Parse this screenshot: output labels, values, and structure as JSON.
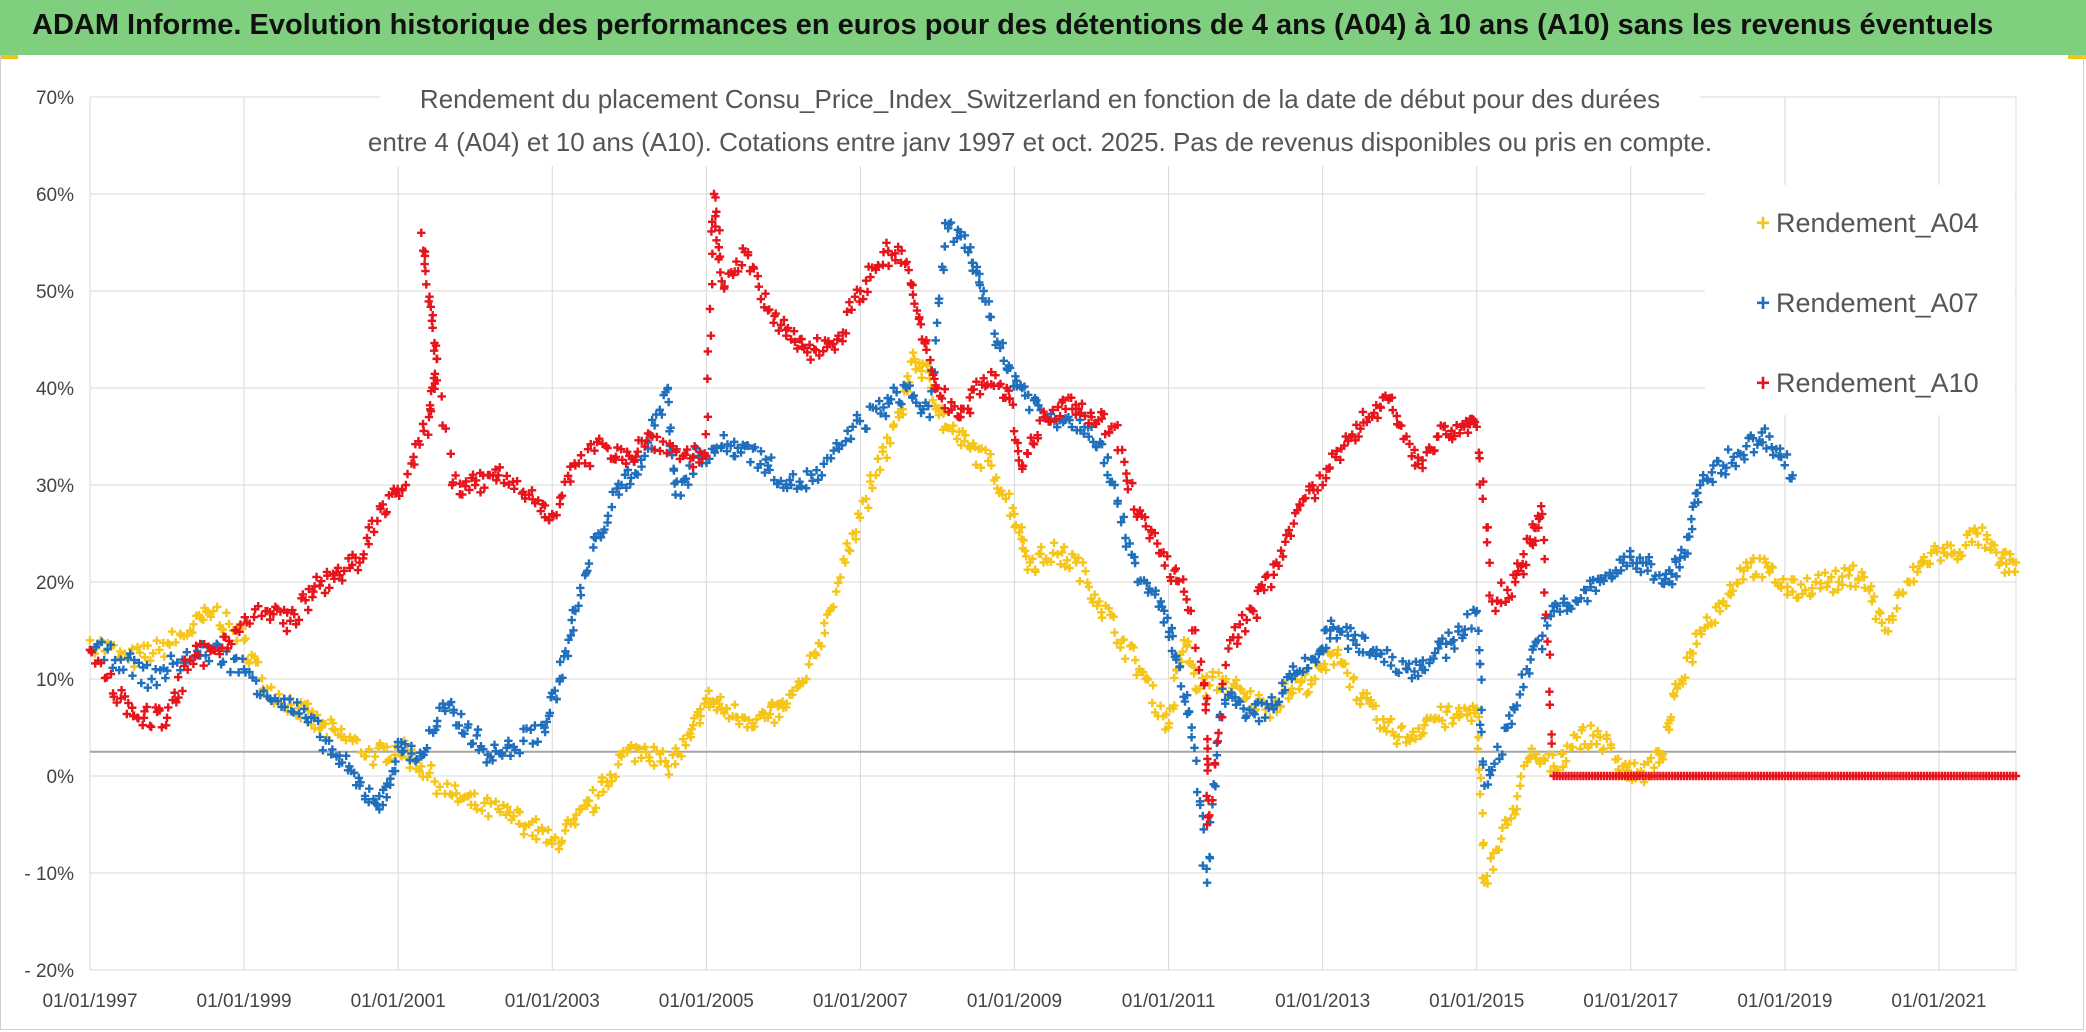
{
  "banner": {
    "title": "ADAM Informe. Evolution historique des performances en euros pour des détentions de 4 ans (A04) à 10 ans (A10) sans les revenus éventuels"
  },
  "colors": {
    "banner": "#7fcf7e",
    "A04": "#f5c518",
    "A07": "#1f6fbd",
    "A10": "#e8141c",
    "grid": "#d9d9d9",
    "baseline": "#a6a6a6"
  },
  "chart_data": {
    "type": "scatter",
    "title_line1": "Rendement du placement Consu_Price_Index_Switzerland en fonction de la date de début pour des durées",
    "title_line2": "entre 4 (A04) et 10 ans (A10). Cotations entre janv 1997 et oct. 2025. Pas de revenus disponibles ou pris en compte.",
    "xlabel": "",
    "ylabel": "",
    "x_tick_labels": [
      "01/01/1997",
      "01/01/1999",
      "01/01/2001",
      "01/01/2003",
      "01/01/2005",
      "01/01/2007",
      "01/01/2009",
      "01/01/2011",
      "01/01/2013",
      "01/01/2015",
      "01/01/2017",
      "01/01/2019",
      "01/01/2021"
    ],
    "y_tick_labels": [
      "70%",
      "60%",
      "50%",
      "40%",
      "30%",
      "20%",
      "10%",
      "0%",
      "- 10%",
      "- 20%"
    ],
    "ylim": [
      -20,
      70
    ],
    "xlim": [
      1997.0,
      2022.0
    ],
    "legend_position": "right",
    "marker": "+",
    "series": [
      {
        "name": "Rendement_A04",
        "key": "A04",
        "points": [
          [
            1997.0,
            14
          ],
          [
            1997.5,
            12
          ],
          [
            1997.9,
            13
          ],
          [
            1998.3,
            15
          ],
          [
            1998.6,
            17
          ],
          [
            1999.0,
            14
          ],
          [
            1999.3,
            9
          ],
          [
            1999.7,
            7
          ],
          [
            2000.0,
            5
          ],
          [
            2000.3,
            4
          ],
          [
            2000.7,
            2
          ],
          [
            2001.0,
            3
          ],
          [
            2001.3,
            1
          ],
          [
            2001.7,
            -2
          ],
          [
            2002.0,
            -3
          ],
          [
            2002.4,
            -4
          ],
          [
            2002.7,
            -5
          ],
          [
            2003.0,
            -7
          ],
          [
            2003.3,
            -5
          ],
          [
            2003.6,
            -2
          ],
          [
            2003.9,
            2
          ],
          [
            2004.2,
            3
          ],
          [
            2004.5,
            1
          ],
          [
            2004.8,
            4
          ],
          [
            2005.0,
            8
          ],
          [
            2005.2,
            7
          ],
          [
            2005.5,
            6
          ],
          [
            2005.8,
            6
          ],
          [
            2006.0,
            7
          ],
          [
            2006.3,
            10
          ],
          [
            2006.6,
            17
          ],
          [
            2006.9,
            25
          ],
          [
            2007.2,
            31
          ],
          [
            2007.5,
            37
          ],
          [
            2007.7,
            43
          ],
          [
            2007.9,
            41
          ],
          [
            2008.1,
            36
          ],
          [
            2008.4,
            34
          ],
          [
            2008.7,
            32
          ],
          [
            2009.0,
            27
          ],
          [
            2009.2,
            22
          ],
          [
            2009.5,
            23
          ],
          [
            2009.8,
            22
          ],
          [
            2010.1,
            18
          ],
          [
            2010.4,
            14
          ],
          [
            2010.7,
            10
          ],
          [
            2011.0,
            5
          ],
          [
            2011.2,
            14
          ],
          [
            2011.4,
            9
          ],
          [
            2011.7,
            10
          ],
          [
            2012.0,
            8
          ],
          [
            2012.3,
            7
          ],
          [
            2012.6,
            9
          ],
          [
            2012.9,
            10
          ],
          [
            2013.2,
            13
          ],
          [
            2013.5,
            8
          ],
          [
            2013.8,
            5
          ],
          [
            2014.1,
            4
          ],
          [
            2014.4,
            6
          ],
          [
            2014.7,
            6
          ],
          [
            2015.0,
            7
          ],
          [
            2015.1,
            -11
          ],
          [
            2015.4,
            -5
          ],
          [
            2015.7,
            2
          ],
          [
            2016.0,
            1
          ],
          [
            2016.3,
            4
          ],
          [
            2016.6,
            4
          ],
          [
            2016.9,
            1
          ],
          [
            2017.1,
            0
          ],
          [
            2017.4,
            2
          ],
          [
            2017.6,
            9
          ],
          [
            2017.9,
            15
          ],
          [
            2018.2,
            18
          ],
          [
            2018.5,
            22
          ],
          [
            2018.8,
            21
          ],
          [
            2019.1,
            19
          ],
          [
            2019.4,
            20
          ],
          [
            2019.7,
            20
          ],
          [
            2020.0,
            21
          ],
          [
            2020.3,
            15
          ],
          [
            2020.6,
            20
          ],
          [
            2020.9,
            23
          ],
          [
            2021.2,
            23
          ],
          [
            2021.5,
            25
          ],
          [
            2021.8,
            22
          ],
          [
            2022.0,
            22
          ]
        ]
      },
      {
        "name": "Rendement_A07",
        "key": "A07",
        "points": [
          [
            1997.0,
            13
          ],
          [
            1997.4,
            12
          ],
          [
            1997.8,
            10
          ],
          [
            1998.2,
            12
          ],
          [
            1998.6,
            13
          ],
          [
            1999.0,
            11
          ],
          [
            1999.4,
            8
          ],
          [
            1999.8,
            6
          ],
          [
            2000.2,
            2
          ],
          [
            2000.5,
            -1
          ],
          [
            2000.8,
            -3
          ],
          [
            2001.0,
            3
          ],
          [
            2001.3,
            2
          ],
          [
            2001.6,
            7
          ],
          [
            2001.9,
            5
          ],
          [
            2002.2,
            2
          ],
          [
            2002.5,
            3
          ],
          [
            2002.9,
            5
          ],
          [
            2003.1,
            10
          ],
          [
            2003.3,
            17
          ],
          [
            2003.6,
            25
          ],
          [
            2003.9,
            30
          ],
          [
            2004.2,
            33
          ],
          [
            2004.5,
            40
          ],
          [
            2004.6,
            29
          ],
          [
            2004.9,
            33
          ],
          [
            2005.2,
            34
          ],
          [
            2005.5,
            34
          ],
          [
            2005.8,
            32
          ],
          [
            2006.1,
            30
          ],
          [
            2006.5,
            31
          ],
          [
            2006.9,
            36
          ],
          [
            2007.3,
            38
          ],
          [
            2007.6,
            40
          ],
          [
            2007.9,
            37
          ],
          [
            2008.1,
            57
          ],
          [
            2008.4,
            54
          ],
          [
            2008.6,
            50
          ],
          [
            2008.9,
            42
          ],
          [
            2009.1,
            40
          ],
          [
            2009.4,
            37
          ],
          [
            2009.7,
            37
          ],
          [
            2010.0,
            36
          ],
          [
            2010.3,
            30
          ],
          [
            2010.6,
            20
          ],
          [
            2010.9,
            18
          ],
          [
            2011.1,
            12
          ],
          [
            2011.3,
            5
          ],
          [
            2011.5,
            -11
          ],
          [
            2011.7,
            9
          ],
          [
            2012.0,
            6
          ],
          [
            2012.3,
            7
          ],
          [
            2012.6,
            10
          ],
          [
            2012.9,
            12
          ],
          [
            2013.1,
            15
          ],
          [
            2013.4,
            14
          ],
          [
            2013.7,
            13
          ],
          [
            2014.1,
            11
          ],
          [
            2014.4,
            12
          ],
          [
            2014.7,
            14
          ],
          [
            2015.0,
            17
          ],
          [
            2015.1,
            -1
          ],
          [
            2015.4,
            5
          ],
          [
            2015.7,
            12
          ],
          [
            2016.0,
            17
          ],
          [
            2016.3,
            18
          ],
          [
            2016.6,
            20
          ],
          [
            2016.9,
            22
          ],
          [
            2017.2,
            22
          ],
          [
            2017.5,
            20
          ],
          [
            2017.7,
            23
          ],
          [
            2017.9,
            30
          ],
          [
            2018.2,
            32
          ],
          [
            2018.5,
            34
          ],
          [
            2018.8,
            35
          ],
          [
            2019.1,
            31
          ]
        ]
      },
      {
        "name": "Rendement_A10",
        "key": "A10",
        "points": [
          [
            1997.0,
            13
          ],
          [
            1997.4,
            8
          ],
          [
            1997.7,
            6
          ],
          [
            1998.0,
            6
          ],
          [
            1998.3,
            12
          ],
          [
            1998.6,
            13
          ],
          [
            1998.9,
            15
          ],
          [
            1999.3,
            17
          ],
          [
            1999.6,
            16
          ],
          [
            1999.9,
            19
          ],
          [
            2000.2,
            21
          ],
          [
            2000.5,
            22
          ],
          [
            2000.8,
            28
          ],
          [
            2001.1,
            30
          ],
          [
            2001.4,
            37
          ],
          [
            2001.5,
            43
          ],
          [
            2001.3,
            56
          ],
          [
            2001.7,
            30
          ],
          [
            2002.0,
            30
          ],
          [
            2002.3,
            31
          ],
          [
            2002.7,
            29
          ],
          [
            2003.0,
            27
          ],
          [
            2003.3,
            32
          ],
          [
            2003.7,
            34
          ],
          [
            2004.0,
            33
          ],
          [
            2004.3,
            35
          ],
          [
            2004.7,
            33
          ],
          [
            2005.0,
            33
          ],
          [
            2005.1,
            60
          ],
          [
            2005.2,
            51
          ],
          [
            2005.5,
            54
          ],
          [
            2005.8,
            48
          ],
          [
            2006.1,
            45
          ],
          [
            2006.4,
            44
          ],
          [
            2006.7,
            45
          ],
          [
            2007.0,
            50
          ],
          [
            2007.3,
            54
          ],
          [
            2007.6,
            53
          ],
          [
            2007.8,
            45
          ],
          [
            2008.0,
            40
          ],
          [
            2008.3,
            37
          ],
          [
            2008.6,
            41
          ],
          [
            2008.9,
            40
          ],
          [
            2009.1,
            32
          ],
          [
            2009.4,
            37
          ],
          [
            2009.7,
            39
          ],
          [
            2010.0,
            37
          ],
          [
            2010.3,
            36
          ],
          [
            2010.6,
            27
          ],
          [
            2010.9,
            23
          ],
          [
            2011.2,
            19
          ],
          [
            2011.5,
            8
          ],
          [
            2011.5,
            -5
          ],
          [
            2011.8,
            14
          ],
          [
            2012.1,
            17
          ],
          [
            2012.4,
            22
          ],
          [
            2012.7,
            28
          ],
          [
            2013.0,
            30
          ],
          [
            2013.3,
            35
          ],
          [
            2013.6,
            37
          ],
          [
            2013.9,
            39
          ],
          [
            2014.2,
            32
          ],
          [
            2014.5,
            35
          ],
          [
            2014.8,
            36
          ],
          [
            2015.0,
            36
          ],
          [
            2015.2,
            18
          ],
          [
            2015.5,
            20
          ],
          [
            2015.7,
            24
          ],
          [
            2015.85,
            27
          ],
          [
            2016.0,
            0
          ],
          [
            2017.0,
            0
          ],
          [
            2018.0,
            0
          ],
          [
            2019.0,
            0
          ],
          [
            2020.0,
            0
          ],
          [
            2021.0,
            0
          ],
          [
            2022.0,
            0
          ]
        ]
      }
    ]
  }
}
